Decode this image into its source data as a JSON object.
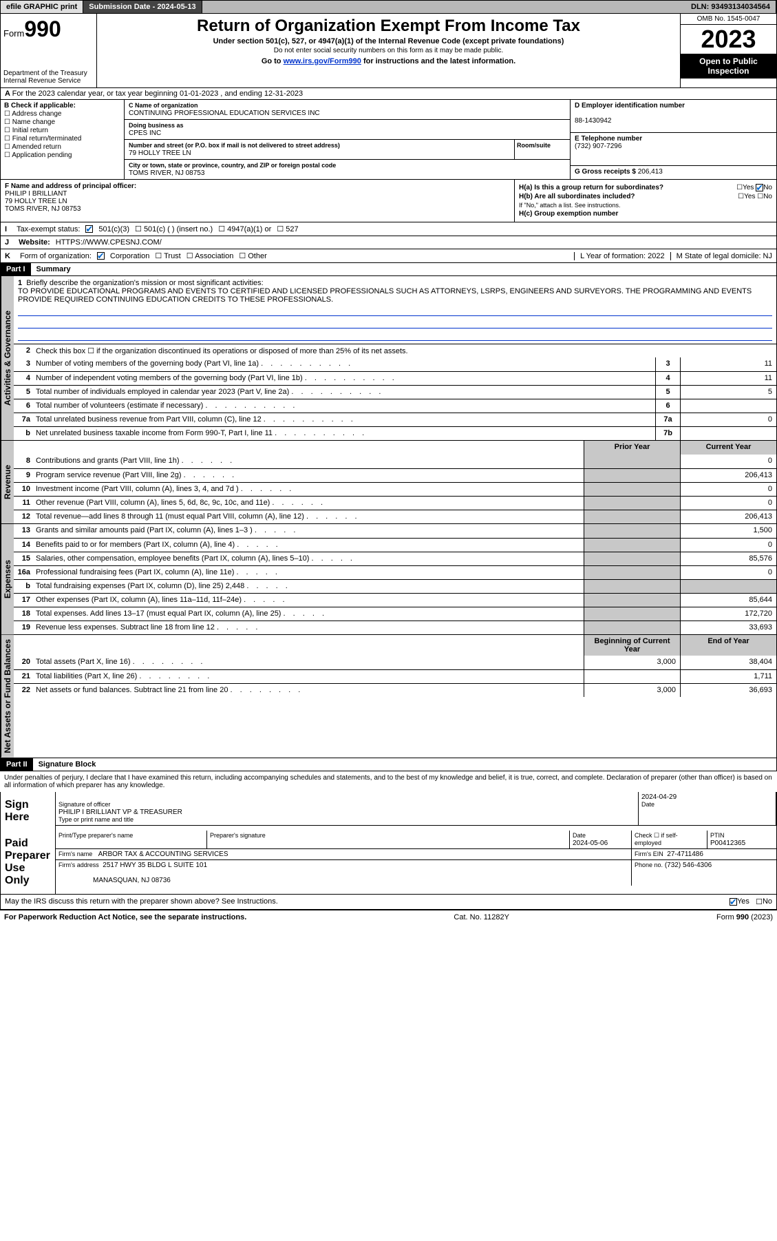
{
  "topbar": {
    "efile": "efile GRAPHIC print",
    "submission": "Submission Date - 2024-05-13",
    "dln": "DLN: 93493134034564"
  },
  "header": {
    "form_label": "Form",
    "form_num": "990",
    "title": "Return of Organization Exempt From Income Tax",
    "sub1": "Under section 501(c), 527, or 4947(a)(1) of the Internal Revenue Code (except private foundations)",
    "sub2": "Do not enter social security numbers on this form as it may be made public.",
    "goto_pre": "Go to ",
    "goto_link": "www.irs.gov/Form990",
    "goto_post": " for instructions and the latest information.",
    "dept": "Department of the Treasury",
    "irs": "Internal Revenue Service",
    "omb": "OMB No. 1545-0047",
    "year": "2023",
    "open1": "Open to Public",
    "open2": "Inspection"
  },
  "line_a": "For the 2023 calendar year, or tax year beginning 01-01-2023   , and ending 12-31-2023",
  "box_b": {
    "title": "B Check if applicable:",
    "opts": [
      "Address change",
      "Name change",
      "Initial return",
      "Final return/terminated",
      "Amended return",
      "Application pending"
    ]
  },
  "box_c": {
    "name_lbl": "C Name of organization",
    "name": "CONTINUING PROFESSIONAL EDUCATION SERVICES INC",
    "dba_lbl": "Doing business as",
    "dba": "CPES INC",
    "addr_lbl": "Number and street (or P.O. box if mail is not delivered to street address)",
    "room_lbl": "Room/suite",
    "addr": "79 HOLLY TREE LN",
    "city_lbl": "City or town, state or province, country, and ZIP or foreign postal code",
    "city": "TOMS RIVER, NJ  08753"
  },
  "box_d": {
    "ein_lbl": "D Employer identification number",
    "ein": "88-1430942",
    "phone_lbl": "E Telephone number",
    "phone": "(732) 907-7296",
    "gross_lbl": "G Gross receipts $",
    "gross": "206,413"
  },
  "box_f": {
    "lbl": "F Name and address of principal officer:",
    "name": "PHILIP I BRILLIANT",
    "addr1": "79 HOLLY TREE LN",
    "addr2": "TOMS RIVER, NJ  08753"
  },
  "box_h": {
    "a": "H(a)  Is this a group return for subordinates?",
    "b": "H(b)  Are all subordinates included?",
    "b_note": "If \"No,\" attach a list. See instructions.",
    "c": "H(c)  Group exemption number",
    "yes": "Yes",
    "no": "No"
  },
  "row_i": {
    "letter": "I",
    "lbl": "Tax-exempt status:",
    "c3": "501(c)(3)",
    "c": "501(c) (  ) (insert no.)",
    "a1": "4947(a)(1) or",
    "s527": "527"
  },
  "row_j": {
    "letter": "J",
    "lbl": "Website:",
    "val": "HTTPS://WWW.CPESNJ.COM/"
  },
  "row_k": {
    "letter": "K",
    "lbl": "Form of organization:",
    "corp": "Corporation",
    "trust": "Trust",
    "assoc": "Association",
    "other": "Other"
  },
  "row_lm": {
    "l": "L Year of formation: 2022",
    "m": "M State of legal domicile: NJ"
  },
  "part1": {
    "hdr": "Part I",
    "title": "Summary",
    "vtab_ag": "Activities & Governance",
    "vtab_rev": "Revenue",
    "vtab_exp": "Expenses",
    "vtab_net": "Net Assets or Fund Balances",
    "q1_lbl": "Briefly describe the organization's mission or most significant activities:",
    "q1_txt": "TO PROVIDE EDUCATIONAL PROGRAMS AND EVENTS TO CERTIFIED AND LICENSED PROFESSIONALS SUCH AS ATTORNEYS, LSRPS, ENGINEERS AND SURVEYORS. THE PROGRAMMING AND EVENTS PROVIDE REQUIRED CONTINUING EDUCATION CREDITS TO THESE PROFESSIONALS.",
    "q2": "Check this box  ☐  if the organization discontinued its operations or disposed of more than 25% of its net assets.",
    "lines_ag": [
      {
        "n": "3",
        "t": "Number of voting members of the governing body (Part VI, line 1a)",
        "box": "3",
        "v": "11"
      },
      {
        "n": "4",
        "t": "Number of independent voting members of the governing body (Part VI, line 1b)",
        "box": "4",
        "v": "11"
      },
      {
        "n": "5",
        "t": "Total number of individuals employed in calendar year 2023 (Part V, line 2a)",
        "box": "5",
        "v": "5"
      },
      {
        "n": "6",
        "t": "Total number of volunteers (estimate if necessary)",
        "box": "6",
        "v": ""
      },
      {
        "n": "7a",
        "t": "Total unrelated business revenue from Part VIII, column (C), line 12",
        "box": "7a",
        "v": "0"
      },
      {
        "n": "b",
        "t": "Net unrelated business taxable income from Form 990-T, Part I, line 11",
        "box": "7b",
        "v": ""
      }
    ],
    "col_prior": "Prior Year",
    "col_curr": "Current Year",
    "lines_rev": [
      {
        "n": "8",
        "t": "Contributions and grants (Part VIII, line 1h)",
        "p": "",
        "c": "0"
      },
      {
        "n": "9",
        "t": "Program service revenue (Part VIII, line 2g)",
        "p": "",
        "c": "206,413"
      },
      {
        "n": "10",
        "t": "Investment income (Part VIII, column (A), lines 3, 4, and 7d )",
        "p": "",
        "c": "0"
      },
      {
        "n": "11",
        "t": "Other revenue (Part VIII, column (A), lines 5, 6d, 8c, 9c, 10c, and 11e)",
        "p": "",
        "c": "0"
      },
      {
        "n": "12",
        "t": "Total revenue—add lines 8 through 11 (must equal Part VIII, column (A), line 12)",
        "p": "",
        "c": "206,413"
      }
    ],
    "lines_exp": [
      {
        "n": "13",
        "t": "Grants and similar amounts paid (Part IX, column (A), lines 1–3 )",
        "p": "",
        "c": "1,500"
      },
      {
        "n": "14",
        "t": "Benefits paid to or for members (Part IX, column (A), line 4)",
        "p": "",
        "c": "0"
      },
      {
        "n": "15",
        "t": "Salaries, other compensation, employee benefits (Part IX, column (A), lines 5–10)",
        "p": "",
        "c": "85,576"
      },
      {
        "n": "16a",
        "t": "Professional fundraising fees (Part IX, column (A), line 11e)",
        "p": "",
        "c": "0"
      },
      {
        "n": "b",
        "t": "Total fundraising expenses (Part IX, column (D), line 25) 2,448",
        "p": "shaded",
        "c": "shaded"
      },
      {
        "n": "17",
        "t": "Other expenses (Part IX, column (A), lines 11a–11d, 11f–24e)",
        "p": "",
        "c": "85,644"
      },
      {
        "n": "18",
        "t": "Total expenses. Add lines 13–17 (must equal Part IX, column (A), line 25)",
        "p": "",
        "c": "172,720"
      },
      {
        "n": "19",
        "t": "Revenue less expenses. Subtract line 18 from line 12",
        "p": "",
        "c": "33,693"
      }
    ],
    "col_beg": "Beginning of Current Year",
    "col_end": "End of Year",
    "lines_net": [
      {
        "n": "20",
        "t": "Total assets (Part X, line 16)",
        "p": "3,000",
        "c": "38,404"
      },
      {
        "n": "21",
        "t": "Total liabilities (Part X, line 26)",
        "p": "",
        "c": "1,711"
      },
      {
        "n": "22",
        "t": "Net assets or fund balances. Subtract line 21 from line 20",
        "p": "3,000",
        "c": "36,693"
      }
    ]
  },
  "part2": {
    "hdr": "Part II",
    "title": "Signature Block",
    "perjury": "Under penalties of perjury, I declare that I have examined this return, including accompanying schedules and statements, and to the best of my knowledge and belief, it is true, correct, and complete. Declaration of preparer (other than officer) is based on all information of which preparer has any knowledge.",
    "sign_here": "Sign Here",
    "sig_officer_lbl": "Signature of officer",
    "officer": "PHILIP I BRILLIANT  VP & TREASURER",
    "type_lbl": "Type or print name and title",
    "date_lbl": "Date",
    "date1": "2024-04-29",
    "paid": "Paid Preparer Use Only",
    "prep_name_lbl": "Print/Type preparer's name",
    "prep_sig_lbl": "Preparer's signature",
    "date2": "2024-05-06",
    "check_self": "Check ☐ if self-employed",
    "ptin_lbl": "PTIN",
    "ptin": "P00412365",
    "firm_name_lbl": "Firm's name",
    "firm_name": "ARBOR TAX & ACCOUNTING SERVICES",
    "firm_ein_lbl": "Firm's EIN",
    "firm_ein": "27-4711486",
    "firm_addr_lbl": "Firm's address",
    "firm_addr1": "2517 HWY 35 BLDG L SUITE 101",
    "firm_addr2": "MANASQUAN, NJ  08736",
    "phone_lbl": "Phone no.",
    "phone": "(732) 546-4306",
    "discuss": "May the IRS discuss this return with the preparer shown above? See Instructions.",
    "yes": "Yes",
    "no": "No"
  },
  "footer": {
    "left": "For Paperwork Reduction Act Notice, see the separate instructions.",
    "mid": "Cat. No. 11282Y",
    "right": "Form 990 (2023)"
  },
  "colors": {
    "link": "#0033cc",
    "shade": "#c8c8c8",
    "topbar": "#b8b8b8"
  }
}
